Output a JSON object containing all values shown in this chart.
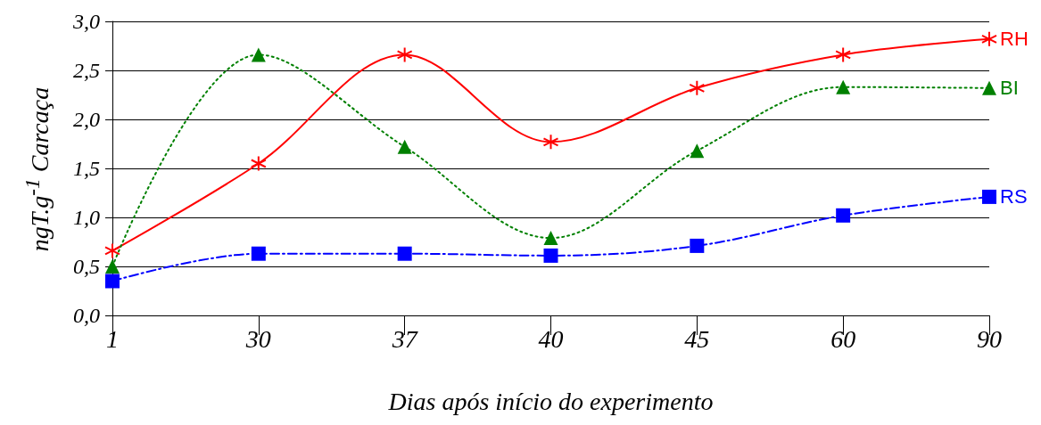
{
  "chart_data": {
    "type": "line",
    "xlabel": "Dias após início do experimento",
    "ylabel": "ngT.g$^{-1}$ Carcaça",
    "categories": [
      "1",
      "30",
      "37",
      "40",
      "45",
      "60",
      "90"
    ],
    "ylim": [
      0,
      3
    ],
    "yticks": [
      {
        "value": 0,
        "label": "0,0"
      },
      {
        "value": 0.5,
        "label": "0,5"
      },
      {
        "value": 1,
        "label": "1,0"
      },
      {
        "value": 1.5,
        "label": "1,5"
      },
      {
        "value": 2,
        "label": "2,0"
      },
      {
        "value": 2.5,
        "label": "2,5"
      },
      {
        "value": 3,
        "label": "3,0"
      }
    ],
    "grid": "y",
    "legend": false,
    "series": [
      {
        "name": "RH",
        "color": "#ff0000",
        "marker": "cross",
        "line_style": "solid",
        "values": [
          0.66,
          1.55,
          2.66,
          1.77,
          2.32,
          2.66,
          2.82
        ]
      },
      {
        "name": "BI",
        "color": "#008000",
        "marker": "triangle",
        "line_style": "dotted",
        "values": [
          0.5,
          2.66,
          1.72,
          0.79,
          1.68,
          2.33,
          2.32
        ]
      },
      {
        "name": "RS",
        "color": "#0000ff",
        "marker": "square",
        "line_style": "dashed",
        "values": [
          0.35,
          0.63,
          0.63,
          0.61,
          0.71,
          1.02,
          1.21
        ]
      }
    ]
  }
}
